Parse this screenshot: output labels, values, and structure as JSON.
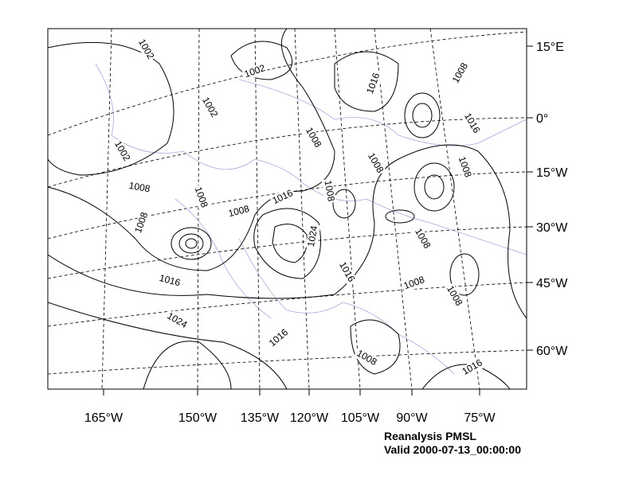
{
  "map": {
    "title": "Reanalysis PMSL",
    "subtitle": "Valid 2000-07-13_00:00:00",
    "lon_labels": [
      "165°W",
      "150°W",
      "135°W",
      "120°W",
      "105°W",
      "90°W",
      "75°W"
    ],
    "lat_labels": [
      "15°E",
      "0°",
      "15°W",
      "30°W",
      "45°W",
      "60°W"
    ],
    "contour_labels": [
      "1002",
      "1002",
      "1002",
      "1002",
      "1008",
      "1008",
      "1008",
      "1008",
      "1016",
      "1008",
      "1016",
      "1008",
      "1016",
      "1008",
      "1008",
      "1008",
      "1024",
      "1016",
      "1008",
      "1008",
      "1008",
      "1016",
      "1024",
      "1016",
      "1008",
      "1016"
    ]
  }
}
